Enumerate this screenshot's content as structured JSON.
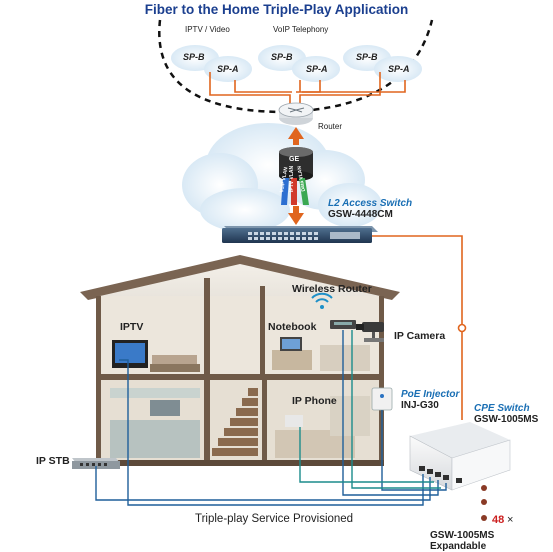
{
  "title": "Fiber to the Home Triple-Play Application",
  "services": {
    "iptv_video": "IPTV / Video",
    "voip_telephony": "VoIP Telephony"
  },
  "clouds": [
    {
      "a": "SP-B",
      "b": "SP-A"
    },
    {
      "a": "SP-B",
      "b": "SP-A"
    },
    {
      "a": "SP-B",
      "b": "SP-A"
    }
  ],
  "router": "Router",
  "module": "GE",
  "uplink_labels": [
    "VoIP VLAN",
    "IPTV VLAN",
    "Data VLAN"
  ],
  "l2_switch": {
    "title": "L2 Access Switch",
    "model": "GSW-4448CM"
  },
  "house": {
    "wireless_router": "Wireless Router",
    "iptv": "IPTV",
    "notebook": "Notebook",
    "ip_camera": "IP Camera",
    "poe_injector": {
      "title": "PoE Injector",
      "model": "INJ-G30"
    },
    "ip_phone": "IP Phone",
    "ip_stb": "IP STB"
  },
  "cpe_switch": {
    "title": "CPE Switch",
    "model": "GSW-1005MS"
  },
  "expandable": {
    "count": "48",
    "times": "×",
    "text": "GSW-1005MS Expandable"
  },
  "footer": "Triple-play Service Provisioned",
  "colors": {
    "title": "#1b3f8f",
    "link_orange": "#e0651e",
    "link_blue": "#1f5f9a",
    "link_teal": "#1b8c8c",
    "accent_blue": "#1a6fb4",
    "red": "#cc1f1f"
  }
}
